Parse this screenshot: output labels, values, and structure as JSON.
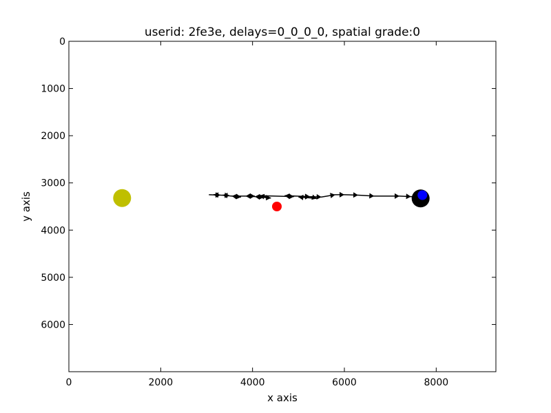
{
  "chart_data": {
    "type": "scatter",
    "title": "userid: 2fe3e, delays=0_0_0_0, spatial grade:0",
    "xlabel": "x axis",
    "ylabel": "y axis",
    "xlim": [
      0,
      9300
    ],
    "ylim": [
      0,
      7000
    ],
    "y_inverted": true,
    "x_ticks": [
      0,
      2000,
      4000,
      6000,
      8000
    ],
    "y_ticks": [
      0,
      1000,
      2000,
      3000,
      4000,
      5000,
      6000
    ],
    "colors": {
      "path": "#000000",
      "yellow": "#bfbf00",
      "red": "#ff0000",
      "black": "#000000",
      "blue": "#0000ff"
    },
    "points": [
      {
        "name": "yellow-point",
        "x": 1160,
        "y": 3320,
        "color": "#bfbf00",
        "size": "large"
      },
      {
        "name": "red-point",
        "x": 4530,
        "y": 3500,
        "color": "#ff0000",
        "size": "small"
      },
      {
        "name": "black-point",
        "x": 7660,
        "y": 3330,
        "color": "#000000",
        "size": "large"
      },
      {
        "name": "blue-point",
        "x": 7700,
        "y": 3260,
        "color": "#0000ff",
        "size": "small"
      }
    ],
    "trajectory": [
      {
        "x": 3050,
        "y": 3250
      },
      {
        "x": 3300,
        "y": 3260
      },
      {
        "x": 3150,
        "y": 3250
      },
      {
        "x": 3500,
        "y": 3270
      },
      {
        "x": 3350,
        "y": 3260
      },
      {
        "x": 3750,
        "y": 3300
      },
      {
        "x": 3550,
        "y": 3280
      },
      {
        "x": 4050,
        "y": 3280
      },
      {
        "x": 3850,
        "y": 3280
      },
      {
        "x": 4250,
        "y": 3300
      },
      {
        "x": 4050,
        "y": 3290
      },
      {
        "x": 4400,
        "y": 3320
      },
      {
        "x": 4150,
        "y": 3270
      },
      {
        "x": 4900,
        "y": 3290
      },
      {
        "x": 4700,
        "y": 3270
      },
      {
        "x": 5250,
        "y": 3290
      },
      {
        "x": 5400,
        "y": 3330
      },
      {
        "x": 5000,
        "y": 3300
      },
      {
        "x": 5250,
        "y": 3290
      },
      {
        "x": 5500,
        "y": 3300
      },
      {
        "x": 5800,
        "y": 3250
      },
      {
        "x": 6000,
        "y": 3250
      },
      {
        "x": 6300,
        "y": 3260
      },
      {
        "x": 6650,
        "y": 3280
      },
      {
        "x": 7200,
        "y": 3280
      },
      {
        "x": 7450,
        "y": 3290
      },
      {
        "x": 7620,
        "y": 3300
      }
    ]
  }
}
